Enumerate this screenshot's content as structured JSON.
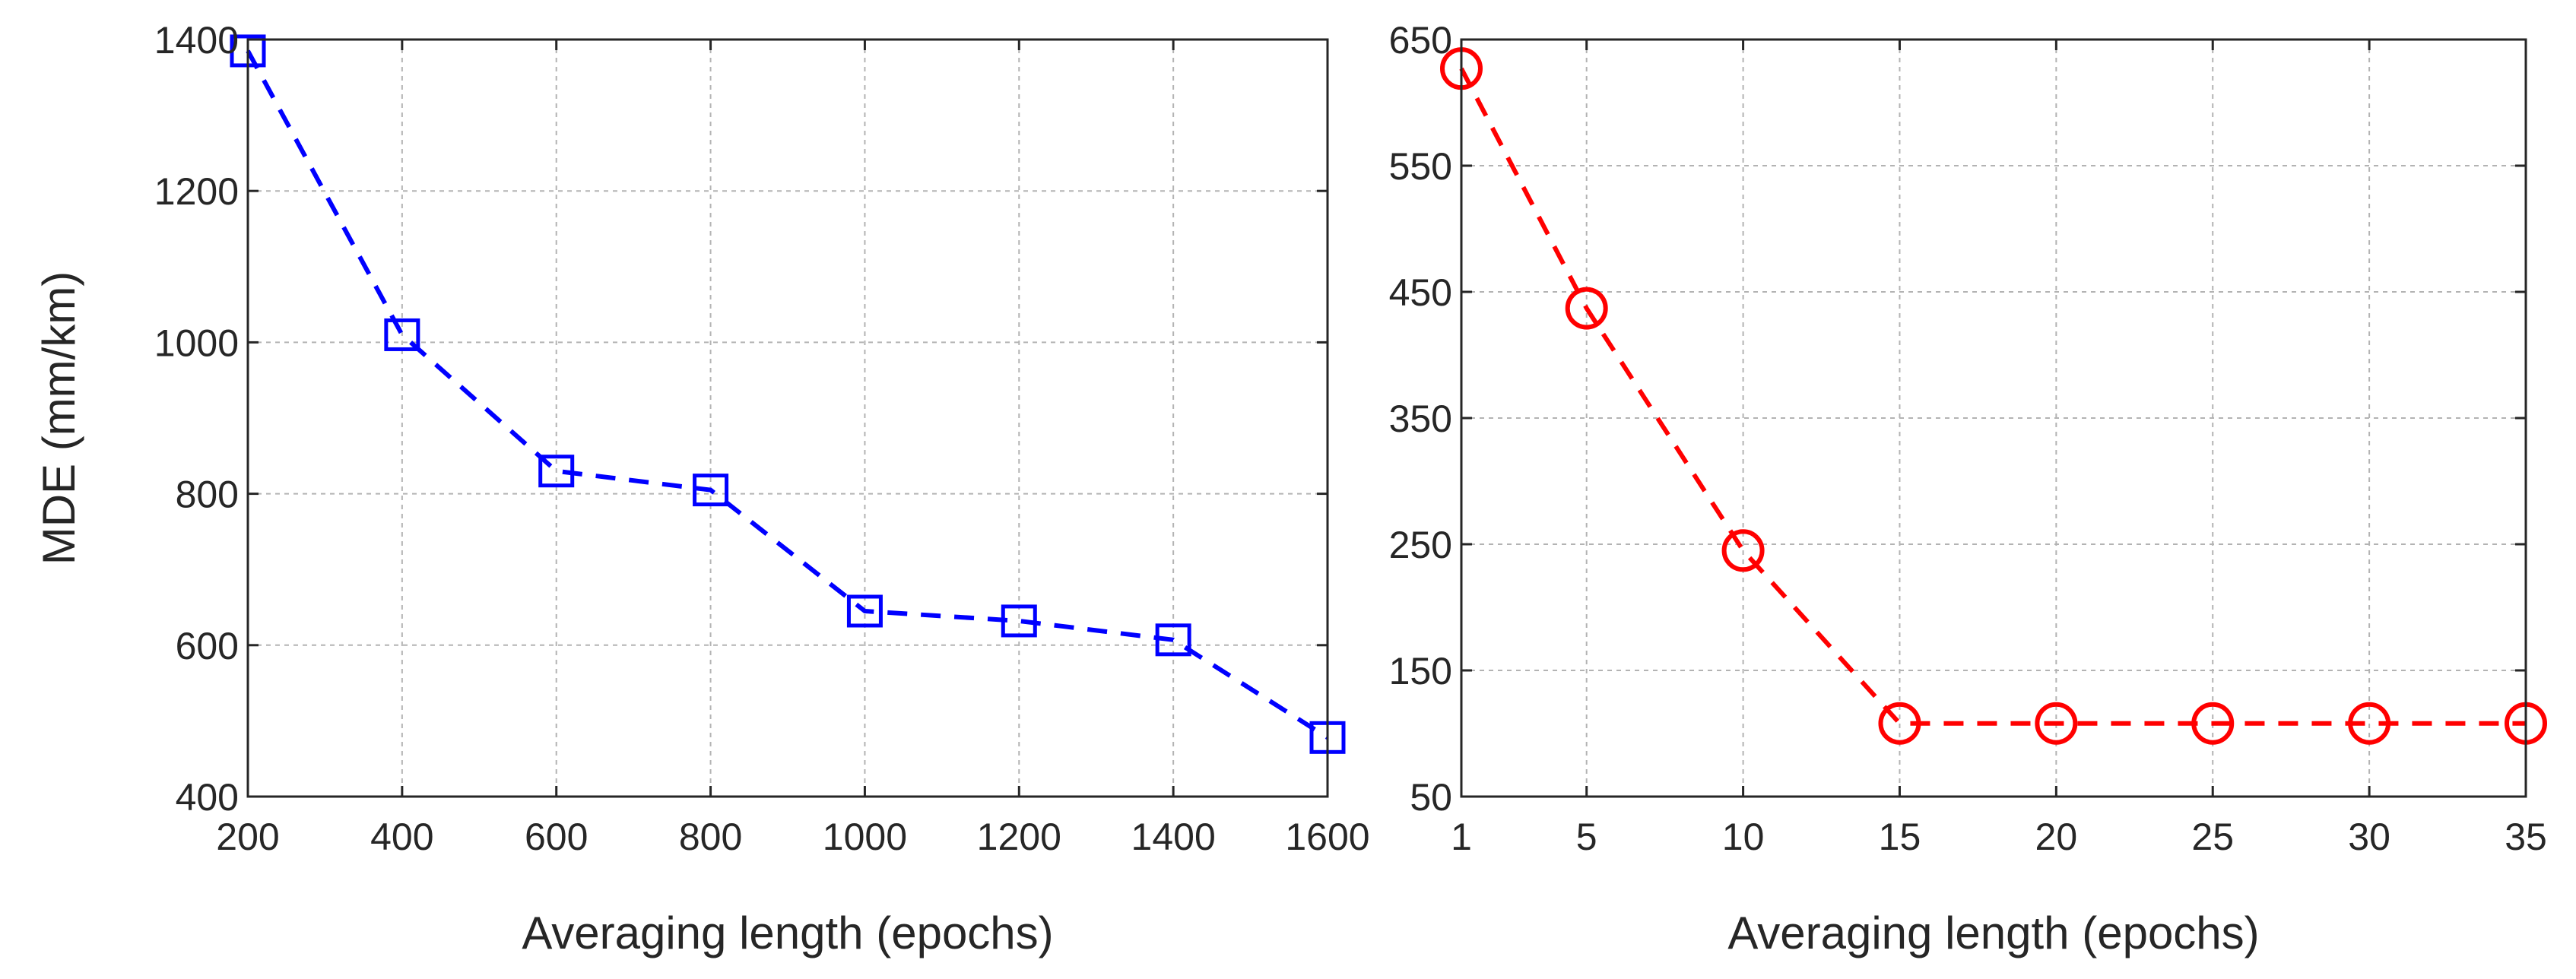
{
  "chart_data": [
    {
      "type": "line",
      "title": "",
      "xlabel": "Averaging length (epochs)",
      "ylabel": "MDE (mm/km)",
      "xlim": [
        200,
        1600
      ],
      "ylim": [
        400,
        1400
      ],
      "xticks": [
        200,
        400,
        600,
        800,
        1000,
        1200,
        1400,
        1600
      ],
      "yticks": [
        400,
        600,
        800,
        1000,
        1200,
        1400
      ],
      "grid": true,
      "series": [
        {
          "name": "MDE",
          "color": "#0000ff",
          "marker": "square",
          "line_style": "dashed",
          "x": [
            200,
            400,
            600,
            800,
            1000,
            1200,
            1400,
            1600
          ],
          "values": [
            1385,
            1010,
            830,
            805,
            645,
            632,
            607,
            478
          ]
        }
      ]
    },
    {
      "type": "line",
      "title": "",
      "xlabel": "Averaging length (epochs)",
      "ylabel": "",
      "xlim": [
        1,
        35
      ],
      "ylim": [
        50,
        650
      ],
      "xticks": [
        1,
        5,
        10,
        15,
        20,
        25,
        30,
        35
      ],
      "yticks": [
        50,
        150,
        250,
        350,
        450,
        550,
        650
      ],
      "grid": true,
      "series": [
        {
          "name": "MDE",
          "color": "#ff0000",
          "marker": "circle",
          "line_style": "dashed",
          "x": [
            1,
            5,
            10,
            15,
            20,
            25,
            30,
            35
          ],
          "values": [
            627,
            437,
            245,
            108,
            108,
            108,
            108,
            108
          ]
        }
      ]
    }
  ]
}
